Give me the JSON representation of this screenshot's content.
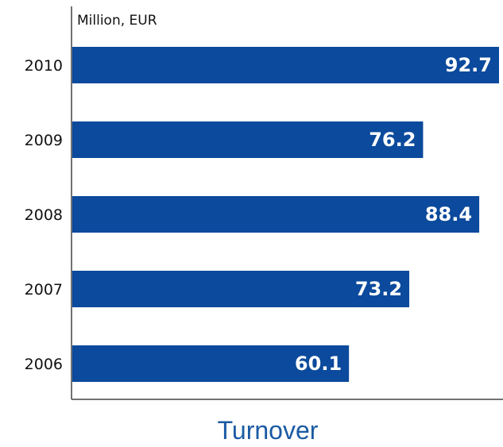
{
  "chart_data": {
    "type": "bar",
    "orientation": "horizontal",
    "title": "Turnover",
    "unit_label": "Million, EUR",
    "categories": [
      "2010",
      "2009",
      "2008",
      "2007",
      "2006"
    ],
    "values": [
      92.7,
      76.2,
      88.4,
      73.2,
      60.1
    ],
    "value_labels": [
      "92.7",
      "76.2",
      "88.4",
      "73.2",
      "60.1"
    ],
    "xlim": [
      0,
      92.7
    ],
    "grid": false,
    "legend": "none",
    "colors": {
      "bar": "#0b4a9c",
      "axis": "#444444",
      "title": "#1a5aa3",
      "value_text": "#ffffff"
    }
  }
}
